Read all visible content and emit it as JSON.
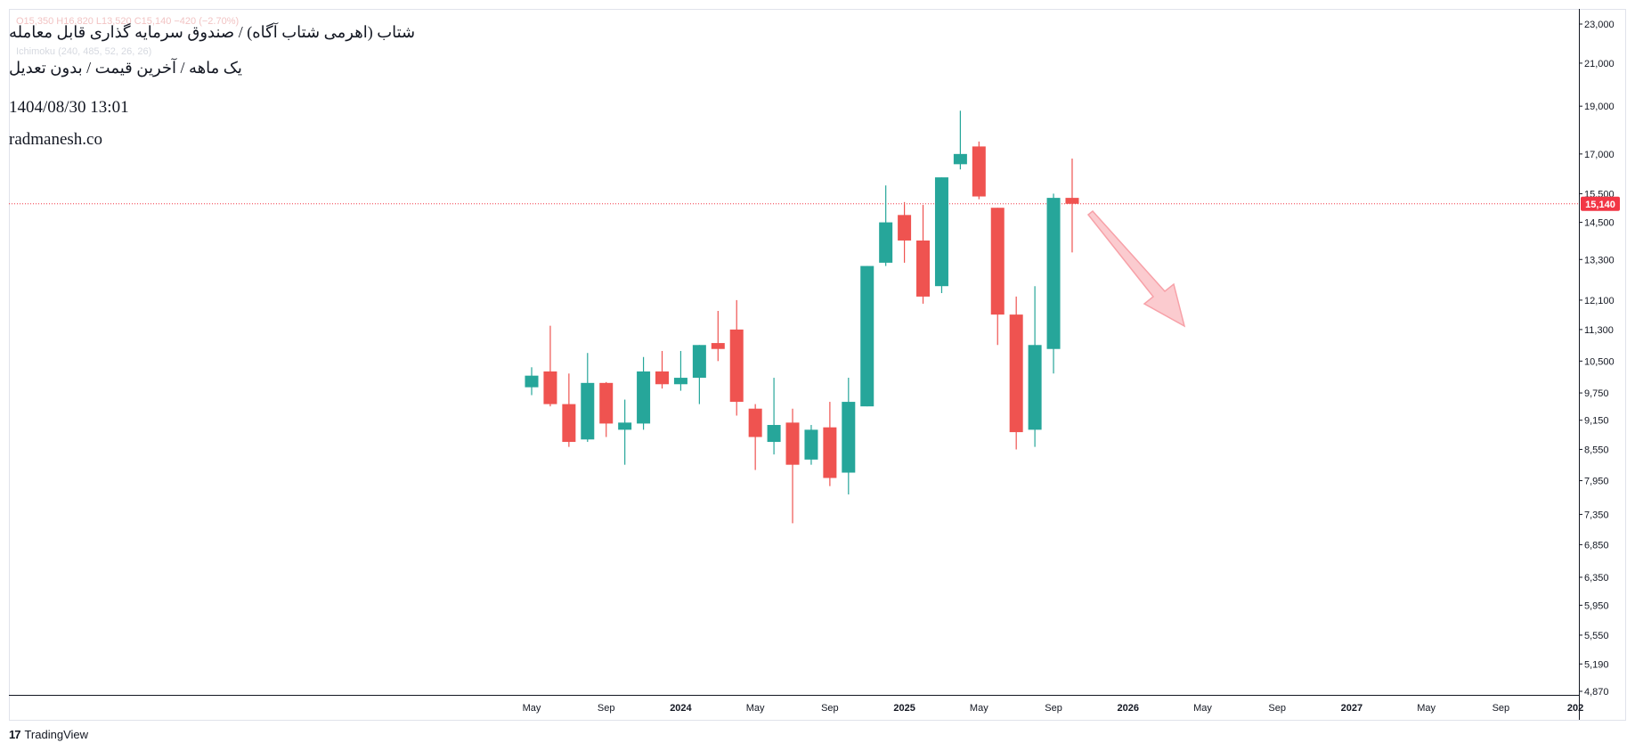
{
  "header": {
    "title": "شتاب (اهرمی شتاب آگاه) / صندوق سرمایه گذاری قابل معامله",
    "subtitle": "یک ماهه / آخرین قیمت / بدون تعدیل",
    "date": "1404/08/30 13:01",
    "site": "radmanesh.co",
    "ohlc_text": "O15,350  H16,820  L13,520  C15,140  −420 (−2.70%)",
    "indicator_text": "Ichimoku (240, 485, 52, 26, 26)"
  },
  "footer": {
    "brand": "TradingView",
    "brand_icon": "tradingview-logo-icon"
  },
  "colors": {
    "up": "#26a69a",
    "down": "#ef5350",
    "price_line": "#f23645",
    "arrow": "#f7a1a8"
  },
  "chart_data": {
    "type": "candlestick",
    "interval": "1M",
    "y_scale": "log",
    "ylim": [
      4870,
      23000
    ],
    "last_price": 15140,
    "last_price_label": "15,140",
    "y_ticks": [
      {
        "v": 23000,
        "l": "23,000"
      },
      {
        "v": 21000,
        "l": "21,000"
      },
      {
        "v": 19000,
        "l": "19,000"
      },
      {
        "v": 17000,
        "l": "17,000"
      },
      {
        "v": 15500,
        "l": "15,500"
      },
      {
        "v": 14500,
        "l": "14,500"
      },
      {
        "v": 13300,
        "l": "13,300"
      },
      {
        "v": 12100,
        "l": "12,100"
      },
      {
        "v": 11300,
        "l": "11,300"
      },
      {
        "v": 10500,
        "l": "10,500"
      },
      {
        "v": 9750,
        "l": "9,750"
      },
      {
        "v": 9150,
        "l": "9,150"
      },
      {
        "v": 8550,
        "l": "8,550"
      },
      {
        "v": 7950,
        "l": "7,950"
      },
      {
        "v": 7350,
        "l": "7,350"
      },
      {
        "v": 6850,
        "l": "6,850"
      },
      {
        "v": 6350,
        "l": "6,350"
      },
      {
        "v": 5950,
        "l": "5,950"
      },
      {
        "v": 5550,
        "l": "5,550"
      },
      {
        "v": 5190,
        "l": "5,190"
      },
      {
        "v": 4870,
        "l": "4,870"
      }
    ],
    "x_ticks": [
      {
        "i": 0,
        "l": "May",
        "bold": false
      },
      {
        "i": 4,
        "l": "Sep",
        "bold": false
      },
      {
        "i": 8,
        "l": "2024",
        "bold": true
      },
      {
        "i": 12,
        "l": "May",
        "bold": false
      },
      {
        "i": 16,
        "l": "Sep",
        "bold": false
      },
      {
        "i": 20,
        "l": "2025",
        "bold": true
      },
      {
        "i": 24,
        "l": "May",
        "bold": false
      },
      {
        "i": 28,
        "l": "Sep",
        "bold": false
      },
      {
        "i": 32,
        "l": "2026",
        "bold": true
      },
      {
        "i": 36,
        "l": "May",
        "bold": false
      },
      {
        "i": 40,
        "l": "Sep",
        "bold": false
      },
      {
        "i": 44,
        "l": "2027",
        "bold": true
      },
      {
        "i": 48,
        "l": "May",
        "bold": false
      },
      {
        "i": 52,
        "l": "Sep",
        "bold": false
      },
      {
        "i": 56,
        "l": "202",
        "bold": true
      }
    ],
    "candles": [
      {
        "o": 9880,
        "h": 10350,
        "l": 9700,
        "c": 10150
      },
      {
        "o": 10250,
        "h": 11400,
        "l": 9450,
        "c": 9500
      },
      {
        "o": 9500,
        "h": 10200,
        "l": 8600,
        "c": 8700
      },
      {
        "o": 8750,
        "h": 10700,
        "l": 8700,
        "c": 9980
      },
      {
        "o": 9980,
        "h": 10000,
        "l": 8800,
        "c": 9080
      },
      {
        "o": 8950,
        "h": 9600,
        "l": 8250,
        "c": 9100
      },
      {
        "o": 9080,
        "h": 10600,
        "l": 8950,
        "c": 10250
      },
      {
        "o": 10250,
        "h": 10750,
        "l": 9850,
        "c": 9950
      },
      {
        "o": 9950,
        "h": 10750,
        "l": 9800,
        "c": 10100
      },
      {
        "o": 10100,
        "h": 10900,
        "l": 9500,
        "c": 10900
      },
      {
        "o": 10950,
        "h": 11800,
        "l": 10500,
        "c": 10800
      },
      {
        "o": 11300,
        "h": 12100,
        "l": 9250,
        "c": 9550
      },
      {
        "o": 9400,
        "h": 9500,
        "l": 8150,
        "c": 8800
      },
      {
        "o": 8700,
        "h": 10100,
        "l": 8450,
        "c": 9050
      },
      {
        "o": 9100,
        "h": 9400,
        "l": 7200,
        "c": 8250
      },
      {
        "o": 8350,
        "h": 9050,
        "l": 8250,
        "c": 8950
      },
      {
        "o": 9000,
        "h": 9550,
        "l": 7850,
        "c": 8000
      },
      {
        "o": 8100,
        "h": 10100,
        "l": 7700,
        "c": 9550
      },
      {
        "o": 9450,
        "h": 13100,
        "l": 9450,
        "c": 13100
      },
      {
        "o": 13200,
        "h": 15800,
        "l": 13100,
        "c": 14500
      },
      {
        "o": 14750,
        "h": 15200,
        "l": 13200,
        "c": 13900
      },
      {
        "o": 13900,
        "h": 15100,
        "l": 12000,
        "c": 12200
      },
      {
        "o": 12500,
        "h": 16100,
        "l": 12300,
        "c": 16100
      },
      {
        "o": 16600,
        "h": 18800,
        "l": 16400,
        "c": 17000
      },
      {
        "o": 17300,
        "h": 17500,
        "l": 15300,
        "c": 15400
      },
      {
        "o": 15000,
        "h": 15000,
        "l": 10900,
        "c": 11700
      },
      {
        "o": 11700,
        "h": 12200,
        "l": 8550,
        "c": 8900
      },
      {
        "o": 8950,
        "h": 12500,
        "l": 8600,
        "c": 10900
      },
      {
        "o": 10800,
        "h": 15500,
        "l": 10200,
        "c": 15350
      },
      {
        "o": 15350,
        "h": 16820,
        "l": 13520,
        "c": 15140
      }
    ]
  }
}
